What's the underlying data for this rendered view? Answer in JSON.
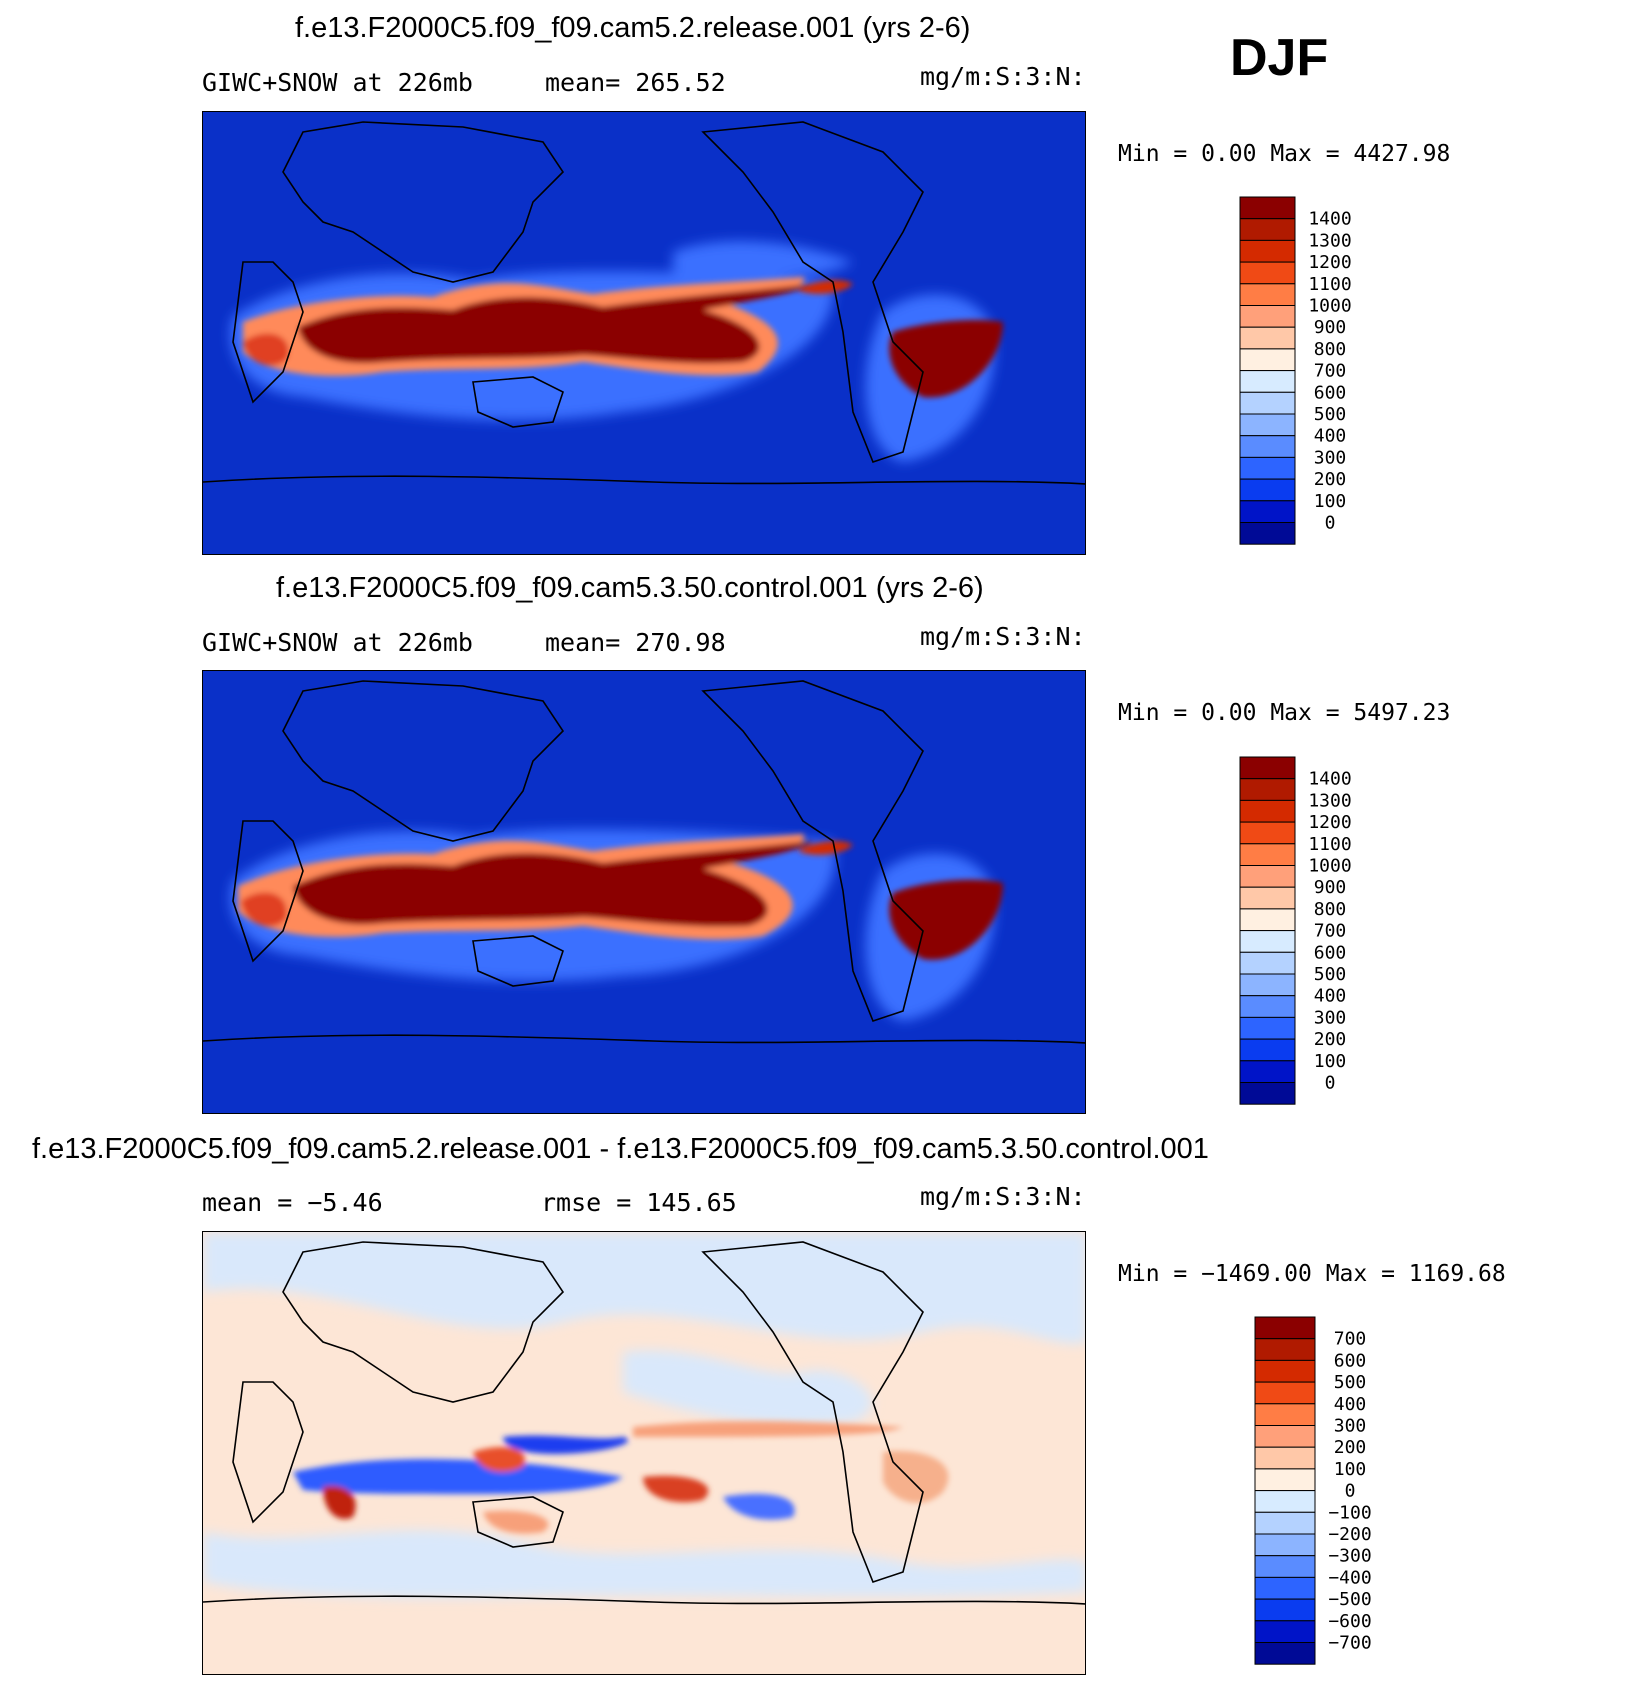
{
  "season": "DJF",
  "panels": [
    {
      "title": "f.e13.F2000C5.f09_f09.cam5.2.release.001 (yrs 2-6)",
      "left_label": "GIWC+SNOW at 226mb",
      "stat_label": "mean= 265.52",
      "units": "mg/m:S:3:N:",
      "minmax": "Min =    0.00 Max = 4427.98"
    },
    {
      "title": "f.e13.F2000C5.f09_f09.cam5.3.50.control.001 (yrs 2-6)",
      "left_label": "GIWC+SNOW at 226mb",
      "stat_label": "mean= 270.98",
      "units": "mg/m:S:3:N:",
      "minmax": "Min =    0.00 Max = 5497.23"
    },
    {
      "title": "f.e13.F2000C5.f09_f09.cam5.2.release.001 - f.e13.F2000C5.f09_f09.cam5.3.50.control.001",
      "left_label": "mean =   −5.46",
      "stat_label": "rmse = 145.65",
      "units": "mg/m:S:3:N:",
      "minmax": "Min = −1469.00 Max = 1169.68"
    }
  ],
  "chart_data": [
    {
      "type": "heatmap",
      "title": "f.e13.F2000C5.f09_f09.cam5.2.release.001 (yrs 2-6)",
      "variable": "GIWC+SNOW at 226mb",
      "mean": 265.52,
      "units": "mg/m:S:3:N:",
      "min": 0.0,
      "max": 4427.98,
      "colorbar_levels": [
        "1400",
        "1300",
        "1200",
        "1100",
        "1000",
        "900",
        "800",
        "700",
        "600",
        "500",
        "400",
        "300",
        "200",
        "100",
        "0"
      ],
      "colorbar_colors": [
        "#8b0000",
        "#b01a00",
        "#d42a00",
        "#f04a15",
        "#ff7d45",
        "#ffa07a",
        "#ffc8a8",
        "#fff0e1",
        "#d7ebff",
        "#b4d2ff",
        "#8cb4ff",
        "#5a8cff",
        "#2d64ff",
        "#0a3cf0",
        "#0014c8",
        "#000a96"
      ]
    },
    {
      "type": "heatmap",
      "title": "f.e13.F2000C5.f09_f09.cam5.3.50.control.001 (yrs 2-6)",
      "variable": "GIWC+SNOW at 226mb",
      "mean": 270.98,
      "units": "mg/m:S:3:N:",
      "min": 0.0,
      "max": 5497.23,
      "colorbar_levels": [
        "1400",
        "1300",
        "1200",
        "1100",
        "1000",
        "900",
        "800",
        "700",
        "600",
        "500",
        "400",
        "300",
        "200",
        "100",
        "0"
      ],
      "colorbar_colors": [
        "#8b0000",
        "#b01a00",
        "#d42a00",
        "#f04a15",
        "#ff7d45",
        "#ffa07a",
        "#ffc8a8",
        "#fff0e1",
        "#d7ebff",
        "#b4d2ff",
        "#8cb4ff",
        "#5a8cff",
        "#2d64ff",
        "#0a3cf0",
        "#0014c8",
        "#000a96"
      ]
    },
    {
      "type": "heatmap",
      "title": "f.e13.F2000C5.f09_f09.cam5.2.release.001 - f.e13.F2000C5.f09_f09.cam5.3.50.control.001",
      "mean": -5.46,
      "rmse": 145.65,
      "units": "mg/m:S:3:N:",
      "min": -1469.0,
      "max": 1169.68,
      "colorbar_levels": [
        "700",
        "600",
        "500",
        "400",
        "300",
        "200",
        "100",
        "0",
        "−100",
        "−200",
        "−300",
        "−400",
        "−500",
        "−600",
        "−700"
      ],
      "colorbar_colors": [
        "#8b0000",
        "#b01a00",
        "#d42a00",
        "#f04a15",
        "#ff7d45",
        "#ffa07a",
        "#ffc8a8",
        "#fff0e1",
        "#d7ebff",
        "#b4d2ff",
        "#8cb4ff",
        "#5a8cff",
        "#2d64ff",
        "#0a3cf0",
        "#0014c8",
        "#000a96"
      ]
    }
  ]
}
